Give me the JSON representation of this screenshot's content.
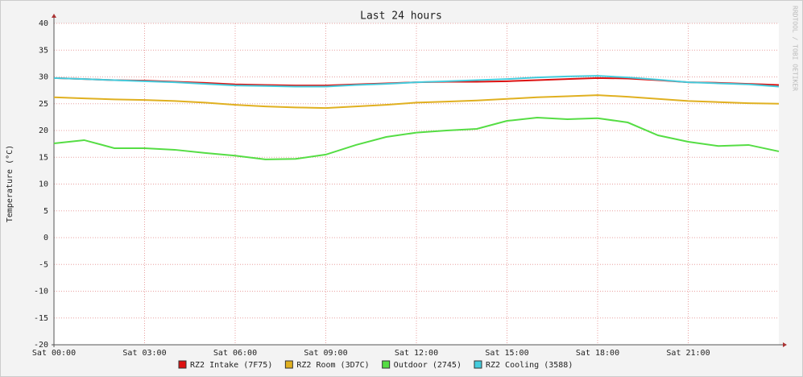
{
  "chart_data": {
    "type": "line",
    "title": "Last 24 hours",
    "y_label": "Temperature (°C)",
    "watermark": "RRDTOOL / TOBI OETIKER",
    "x": [
      0,
      1,
      2,
      3,
      4,
      5,
      6,
      7,
      8,
      9,
      10,
      11,
      12,
      13,
      14,
      15,
      16,
      17,
      18,
      19,
      20,
      21,
      22,
      23,
      24
    ],
    "xlim": [
      0,
      24
    ],
    "xticks": [
      {
        "value": 0,
        "label": "Sat 00:00"
      },
      {
        "value": 3,
        "label": "Sat 03:00"
      },
      {
        "value": 6,
        "label": "Sat 06:00"
      },
      {
        "value": 9,
        "label": "Sat 09:00"
      },
      {
        "value": 12,
        "label": "Sat 12:00"
      },
      {
        "value": 15,
        "label": "Sat 15:00"
      },
      {
        "value": 18,
        "label": "Sat 18:00"
      },
      {
        "value": 21,
        "label": "Sat 21:00"
      }
    ],
    "ylim": [
      -20,
      40
    ],
    "yticks": [
      -20,
      -15,
      -10,
      -5,
      0,
      5,
      10,
      15,
      20,
      25,
      30,
      35,
      40
    ],
    "grid": true,
    "series": [
      {
        "name": "RZ2 Intake (7F75)",
        "color": "#dd1111",
        "values": [
          29.8,
          29.6,
          29.4,
          29.3,
          29.1,
          28.9,
          28.6,
          28.5,
          28.4,
          28.4,
          28.6,
          28.8,
          29.0,
          29.1,
          29.1,
          29.2,
          29.4,
          29.6,
          29.8,
          29.7,
          29.4,
          29.0,
          28.9,
          28.7,
          28.5
        ]
      },
      {
        "name": "RZ2 Room (3D7C)",
        "color": "#e0b020",
        "values": [
          26.2,
          26.0,
          25.8,
          25.7,
          25.5,
          25.2,
          24.8,
          24.5,
          24.3,
          24.2,
          24.5,
          24.8,
          25.2,
          25.4,
          25.6,
          25.9,
          26.2,
          26.4,
          26.6,
          26.3,
          25.9,
          25.5,
          25.3,
          25.1,
          25.0
        ]
      },
      {
        "name": "Outdoor (2745)",
        "color": "#55dd44",
        "values": [
          17.6,
          18.2,
          16.7,
          16.7,
          16.4,
          15.8,
          15.3,
          14.6,
          14.7,
          15.5,
          17.3,
          18.8,
          19.6,
          20.0,
          20.3,
          21.8,
          22.4,
          22.1,
          22.3,
          21.5,
          19.1,
          17.9,
          17.1,
          17.3,
          16.1
        ]
      },
      {
        "name": "RZ2 Cooling (3588)",
        "color": "#44ccdd",
        "values": [
          29.8,
          29.6,
          29.4,
          29.2,
          29.0,
          28.7,
          28.4,
          28.3,
          28.2,
          28.2,
          28.5,
          28.7,
          29.0,
          29.2,
          29.4,
          29.6,
          29.9,
          30.1,
          30.2,
          29.9,
          29.5,
          29.0,
          28.8,
          28.6,
          28.2
        ]
      }
    ]
  }
}
